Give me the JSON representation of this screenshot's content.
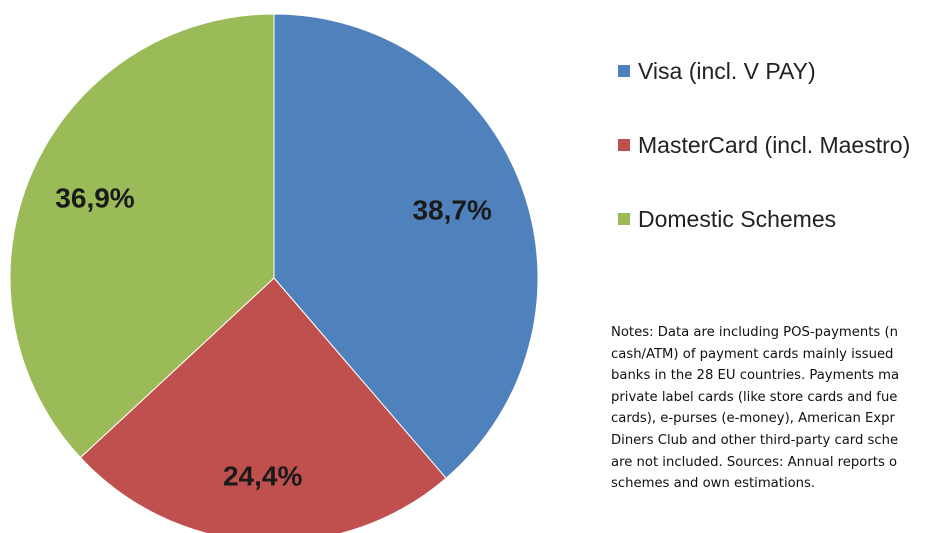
{
  "chart_data": {
    "type": "pie",
    "slices": [
      {
        "label": "Visa (incl. V PAY)",
        "value": 38.7,
        "value_label": "38,7%",
        "color": "#4f81bd"
      },
      {
        "label": "MasterCard (incl. Maestro)",
        "value": 24.4,
        "value_label": "24,4%",
        "color": "#c0504d"
      },
      {
        "label": "Domestic Schemes",
        "value": 36.9,
        "value_label": "36,9%",
        "color": "#9bbb59"
      }
    ],
    "legend_position": "right"
  },
  "notes": {
    "lines": [
      "Notes: Data are including POS-payments (n",
      "cash/ATM) of payment cards mainly issued",
      "banks in the 28 EU countries. Payments ma",
      "private label cards (like store cards and fue",
      "cards), e-purses (e-money), American Expr",
      "Diners Club and other third-party card sche",
      "are not included. Sources: Annual reports o",
      "schemes and own estimations."
    ]
  }
}
